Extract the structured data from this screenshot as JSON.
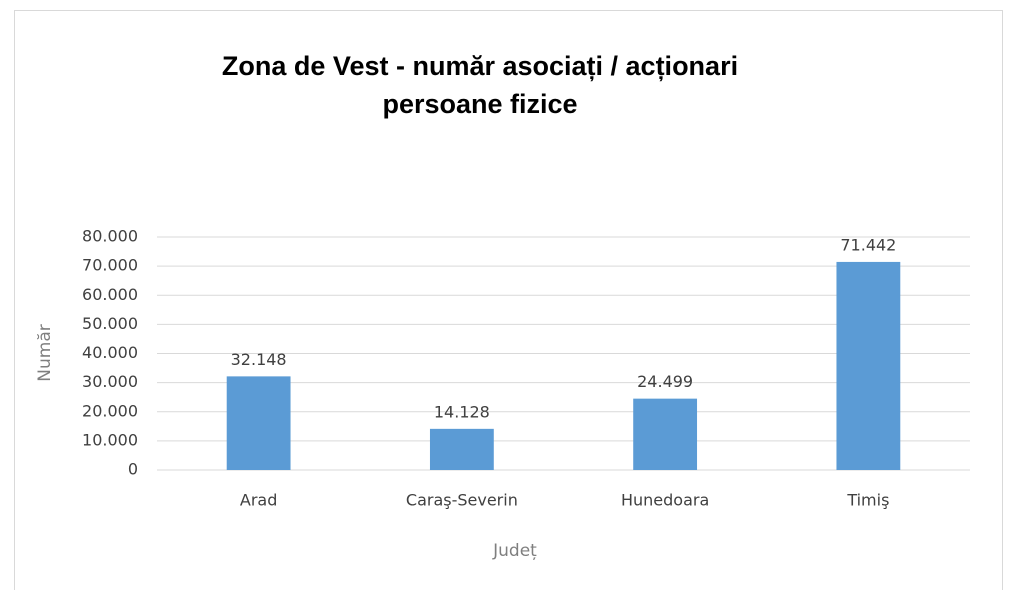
{
  "chart_data": {
    "type": "bar",
    "title": [
      "Zona de Vest - număr asociați / acționari",
      "persoane fizice"
    ],
    "x_label": "Județ",
    "y_label": "Număr",
    "categories": [
      "Arad",
      "Caraş-Severin",
      "Hunedoara",
      "Timiş"
    ],
    "values": [
      32148,
      14128,
      24499,
      71442
    ],
    "value_labels": [
      "32.148",
      "14.128",
      "24.499",
      "71.442"
    ],
    "color": "#5b9bd5",
    "ylim": [
      0,
      80000
    ],
    "yticks": [
      0,
      {
        "value": 10000,
        "label": "10.000"
      },
      {
        "value": 20000,
        "label": "20.000"
      },
      {
        "value": 30000,
        "label": "30.000"
      },
      {
        "value": 40000,
        "label": "40.000"
      },
      {
        "value": 50000,
        "label": "50.000"
      },
      {
        "value": 60000,
        "label": "60.000"
      },
      {
        "value": 70000,
        "label": "70.000"
      },
      {
        "value": 80000,
        "label": "80.000"
      }
    ],
    "grid": true
  }
}
